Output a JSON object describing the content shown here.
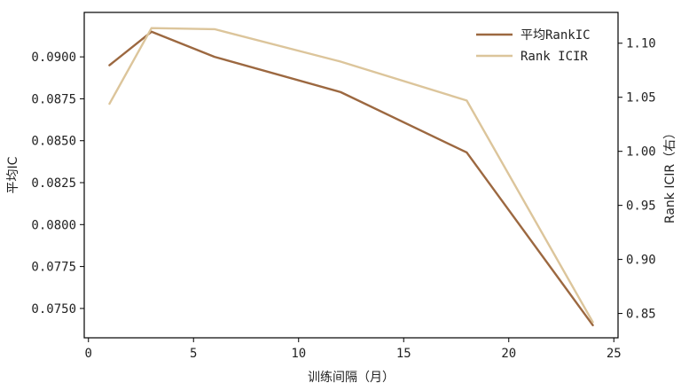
{
  "chart_data": {
    "type": "line",
    "xlabel": "训练间隔（月）",
    "ylabel_left": "平均IC",
    "ylabel_right": "Rank ICIR（右）",
    "xlim": [
      -0.2,
      25.2
    ],
    "ylim_left": [
      0.07325,
      0.09265
    ],
    "ylim_right": [
      0.8275,
      1.1285
    ],
    "x_ticks": [
      0,
      5,
      10,
      15,
      20,
      25
    ],
    "y_left_ticks": [
      0.075,
      0.0775,
      0.08,
      0.0825,
      0.085,
      0.0875,
      0.09
    ],
    "y_right_ticks": [
      0.85,
      0.9,
      0.95,
      1.0,
      1.05,
      1.1
    ],
    "grid": false,
    "legend_position": "top-right",
    "series": [
      {
        "name": "平均RankIC",
        "axis": "left",
        "color": "#9c6840",
        "x": [
          1,
          3,
          6,
          12,
          18,
          24
        ],
        "values": [
          0.0895,
          0.0915,
          0.09,
          0.0879,
          0.0843,
          0.074
        ]
      },
      {
        "name": "Rank ICIR",
        "axis": "right",
        "color": "#dcc59b",
        "x": [
          1,
          3,
          6,
          12,
          18,
          24
        ],
        "values": [
          1.044,
          1.114,
          1.113,
          1.083,
          1.047,
          0.842
        ]
      }
    ]
  }
}
